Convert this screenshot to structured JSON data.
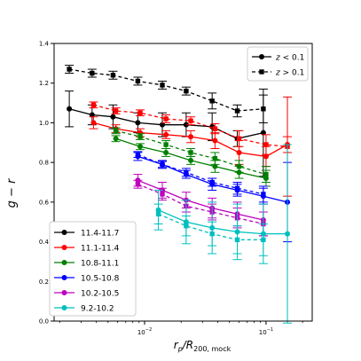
{
  "chart_data": {
    "type": "line",
    "title": "",
    "xlabel": "$r_p/R_{200,\\mathrm{mock}}$",
    "xlabel_main": "r",
    "xlabel_main_sub": "p",
    "xlabel_slash": "/R",
    "xlabel_sub": "200, mock",
    "ylabel": "g − r",
    "xscale": "log",
    "xlim": [
      0.0018,
      0.24
    ],
    "ylim": [
      0.0,
      1.4
    ],
    "yticks": [
      "0.0",
      "0.2",
      "0.4",
      "0.6",
      "0.8",
      "1.0",
      "1.2",
      "1.4"
    ],
    "xticks": [
      {
        "value": 0.01,
        "base": "10",
        "exp": "−2"
      },
      {
        "value": 0.1,
        "base": "10",
        "exp": "−1"
      }
    ],
    "grid": false,
    "style_legend": {
      "placement": "top-right",
      "entries": [
        {
          "label_var": "z",
          "label_op": " < 0.1",
          "linestyle": "solid",
          "marker": "circle"
        },
        {
          "label_var": "z",
          "label_op": " > 0.1",
          "linestyle": "dashed",
          "marker": "square"
        }
      ]
    },
    "mass_legend": {
      "placement": "bottom-left",
      "entries": [
        "11.4-11.7",
        "11.1-11.4",
        "10.8-11.1",
        "10.5-10.8",
        "10.2-10.5",
        "9.2-10.2"
      ]
    },
    "series": [
      {
        "name": "11.4-11.7",
        "z": "low",
        "color": "#000000",
        "x": [
          0.0024,
          0.0037,
          0.0055,
          0.0088,
          0.014,
          0.022,
          0.036,
          0.058,
          0.095
        ],
        "y": [
          1.07,
          1.04,
          1.03,
          1.0,
          0.99,
          0.99,
          0.98,
          0.92,
          0.95
        ],
        "err": [
          0.09,
          0.05,
          0.06,
          0.05,
          0.06,
          0.06,
          0.07,
          0.04,
          0.22
        ]
      },
      {
        "name": "11.4-11.7",
        "z": "high",
        "color": "#000000",
        "x": [
          0.0024,
          0.0037,
          0.0055,
          0.0088,
          0.014,
          0.022,
          0.036,
          0.058,
          0.095
        ],
        "y": [
          1.27,
          1.25,
          1.24,
          1.21,
          1.19,
          1.16,
          1.11,
          1.06,
          1.07
        ],
        "err": [
          0.02,
          0.02,
          0.02,
          0.02,
          0.02,
          0.02,
          0.04,
          0.03,
          0.07
        ]
      },
      {
        "name": "11.1-11.4",
        "z": "low",
        "color": "#ff0000",
        "x": [
          0.0038,
          0.0058,
          0.0092,
          0.015,
          0.024,
          0.038,
          0.06,
          0.1,
          0.15
        ],
        "y": [
          1.0,
          0.97,
          0.95,
          0.94,
          0.93,
          0.91,
          0.85,
          0.83,
          0.89
        ],
        "err": [
          0.03,
          0.02,
          0.02,
          0.02,
          0.03,
          0.04,
          0.06,
          0.05,
          0.04
        ]
      },
      {
        "name": "11.1-11.4",
        "z": "high",
        "color": "#ff0000",
        "x": [
          0.0038,
          0.0058,
          0.0092,
          0.015,
          0.024,
          0.038,
          0.06,
          0.1,
          0.15
        ],
        "y": [
          1.09,
          1.06,
          1.05,
          1.02,
          1.01,
          0.97,
          0.92,
          0.89,
          0.88
        ],
        "err": [
          0.015,
          0.015,
          0.015,
          0.02,
          0.02,
          0.025,
          0.04,
          0.05,
          0.25
        ]
      },
      {
        "name": "10.8-11.1",
        "z": "low",
        "color": "#008000",
        "x": [
          0.0058,
          0.0092,
          0.015,
          0.024,
          0.038,
          0.06,
          0.1
        ],
        "y": [
          0.92,
          0.88,
          0.85,
          0.81,
          0.78,
          0.75,
          0.72
        ],
        "err": [
          0.015,
          0.015,
          0.02,
          0.02,
          0.03,
          0.03,
          0.04
        ]
      },
      {
        "name": "10.8-11.1",
        "z": "high",
        "color": "#008000",
        "x": [
          0.0058,
          0.0092,
          0.015,
          0.024,
          0.038,
          0.06,
          0.1
        ],
        "y": [
          0.96,
          0.93,
          0.89,
          0.85,
          0.82,
          0.78,
          0.74
        ],
        "err": [
          0.015,
          0.015,
          0.02,
          0.02,
          0.03,
          0.03,
          0.04
        ]
      },
      {
        "name": "10.5-10.8",
        "z": "low",
        "color": "#0000ff",
        "x": [
          0.0088,
          0.014,
          0.022,
          0.036,
          0.058,
          0.095,
          0.15
        ],
        "y": [
          0.83,
          0.79,
          0.74,
          0.69,
          0.66,
          0.63,
          0.6
        ],
        "err": [
          0.02,
          0.02,
          0.02,
          0.03,
          0.03,
          0.04,
          0.2
        ]
      },
      {
        "name": "10.5-10.8",
        "z": "high",
        "color": "#0000ff",
        "x": [
          0.0088,
          0.014,
          0.022,
          0.036,
          0.058,
          0.095
        ],
        "y": [
          0.84,
          0.79,
          0.75,
          0.7,
          0.67,
          0.64
        ],
        "err": [
          0.015,
          0.015,
          0.02,
          0.02,
          0.03,
          0.04
        ]
      },
      {
        "name": "10.2-10.5",
        "z": "low",
        "color": "#bf00bf",
        "x": [
          0.0088,
          0.014,
          0.022,
          0.036,
          0.058,
          0.095
        ],
        "y": [
          0.71,
          0.66,
          0.61,
          0.57,
          0.54,
          0.51
        ],
        "err": [
          0.03,
          0.04,
          0.04,
          0.05,
          0.06,
          0.08
        ]
      },
      {
        "name": "10.2-10.5",
        "z": "high",
        "color": "#bf00bf",
        "x": [
          0.0088,
          0.014,
          0.022,
          0.036,
          0.058,
          0.095
        ],
        "y": [
          0.69,
          0.64,
          0.58,
          0.55,
          0.52,
          0.49
        ],
        "err": [
          0.02,
          0.03,
          0.03,
          0.04,
          0.05,
          0.06
        ]
      },
      {
        "name": "9.2-10.2",
        "z": "low",
        "color": "#00bfbf",
        "x": [
          0.013,
          0.022,
          0.036,
          0.058,
          0.095,
          0.15
        ],
        "y": [
          0.56,
          0.5,
          0.47,
          0.45,
          0.44,
          0.44
        ],
        "err": [
          0.1,
          0.11,
          0.13,
          0.14,
          0.15,
          0.45
        ]
      },
      {
        "name": "9.2-10.2",
        "z": "high",
        "color": "#00bfbf",
        "x": [
          0.013,
          0.022,
          0.036,
          0.058,
          0.095
        ],
        "y": [
          0.54,
          0.48,
          0.44,
          0.41,
          0.41
        ],
        "err": [
          0.05,
          0.05,
          0.06,
          0.07,
          0.08
        ]
      }
    ]
  }
}
